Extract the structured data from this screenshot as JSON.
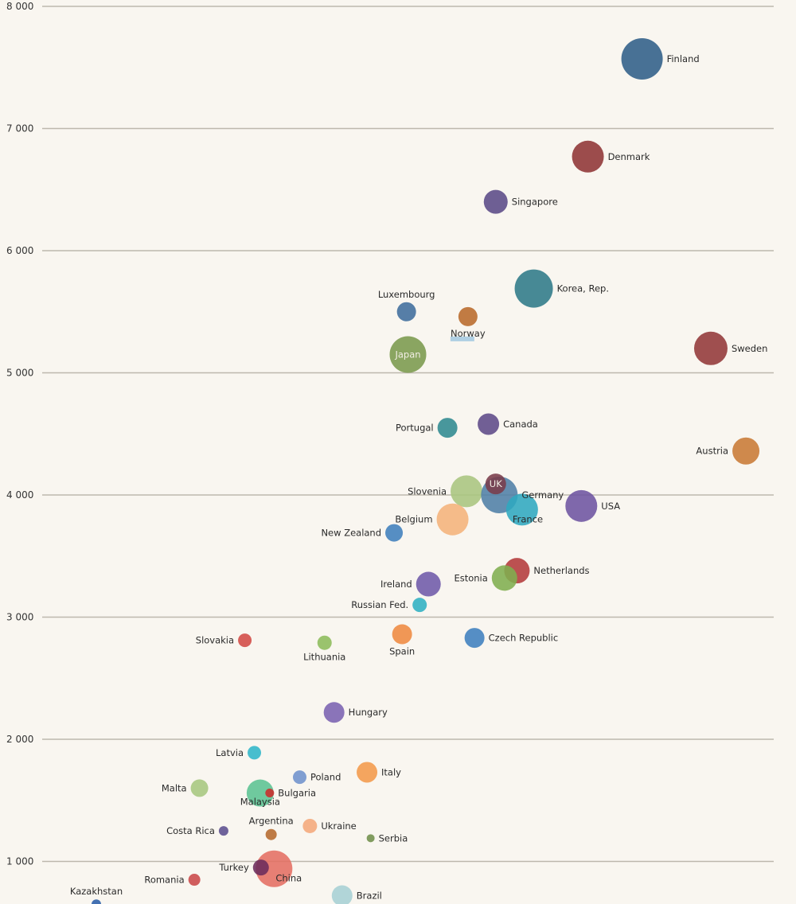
{
  "chart_data": {
    "type": "scatter",
    "subtype": "bubble",
    "title": "",
    "xlabel": "",
    "ylabel": "",
    "ylim": [
      600,
      8000
    ],
    "xlim": [
      0,
      100
    ],
    "grid": true,
    "y_ticks": [
      {
        "value": 8000,
        "label": "8 000"
      },
      {
        "value": 7000,
        "label": "7 000"
      },
      {
        "value": 6000,
        "label": "6 000"
      },
      {
        "value": 5000,
        "label": "5 000"
      },
      {
        "value": 4000,
        "label": "4 000"
      },
      {
        "value": 3000,
        "label": "3 000"
      },
      {
        "value": 2000,
        "label": "2 000"
      },
      {
        "value": 1000,
        "label": "1 000"
      }
    ],
    "points": [
      {
        "name": "Finland",
        "x": 82.0,
        "y": 7570,
        "size": 26,
        "color": "#2f5f87",
        "label_pos": "right"
      },
      {
        "name": "Denmark",
        "x": 74.6,
        "y": 6770,
        "size": 20,
        "color": "#8e3434",
        "label_pos": "right"
      },
      {
        "name": "Singapore",
        "x": 62.0,
        "y": 6400,
        "size": 15,
        "color": "#5a4a86",
        "label_pos": "right"
      },
      {
        "name": "Korea, Rep.",
        "x": 67.2,
        "y": 5690,
        "size": 24,
        "color": "#2d7a87",
        "label_pos": "right"
      },
      {
        "name": "Luxembourg",
        "x": 49.8,
        "y": 5500,
        "size": 12,
        "color": "#3f6d9c",
        "label_pos": "top"
      },
      {
        "name": "Norway",
        "x": 58.2,
        "y": 5460,
        "size": 12,
        "color": "#b86a2a",
        "label_pos": "bottom"
      },
      {
        "name": "Japan",
        "x": 50.0,
        "y": 5150,
        "size": 23,
        "color": "#7a9a4c",
        "label_pos": "inside"
      },
      {
        "name": "Sweden",
        "x": 91.4,
        "y": 5200,
        "size": 21,
        "color": "#923838",
        "label_pos": "right"
      },
      {
        "name": "Portugal",
        "x": 55.4,
        "y": 4550,
        "size": 12.5,
        "color": "#2f8a90",
        "label_pos": "left"
      },
      {
        "name": "Canada",
        "x": 61.0,
        "y": 4580,
        "size": 13.5,
        "color": "#5d4a88",
        "label_pos": "right"
      },
      {
        "name": "Austria",
        "x": 96.2,
        "y": 4360,
        "size": 17,
        "color": "#c87a34",
        "label_pos": "left"
      },
      {
        "name": "Slovenia",
        "x": 58.0,
        "y": 4030,
        "size": 20,
        "color": "#a9c57e",
        "label_pos": "left"
      },
      {
        "name": "Germany",
        "x": 62.5,
        "y": 4000,
        "size": 23,
        "color": "#4e7fa6",
        "label_pos": "right"
      },
      {
        "name": "UK",
        "x": 62.0,
        "y": 4090,
        "size": 13,
        "color": "#7a3c4a",
        "label_pos": "inside"
      },
      {
        "name": "France",
        "x": 65.6,
        "y": 3880,
        "size": 20,
        "color": "#2fa8bf",
        "label_pos": "bottom-right"
      },
      {
        "name": "USA",
        "x": 73.7,
        "y": 3910,
        "size": 20,
        "color": "#6d54a0",
        "label_pos": "right"
      },
      {
        "name": "Belgium",
        "x": 56.1,
        "y": 3800,
        "size": 20,
        "color": "#f4b37a",
        "label_pos": "left"
      },
      {
        "name": "New Zealand",
        "x": 48.1,
        "y": 3690,
        "size": 11,
        "color": "#3f7fbc",
        "label_pos": "left"
      },
      {
        "name": "Netherlands",
        "x": 64.9,
        "y": 3380,
        "size": 16,
        "color": "#b33a3a",
        "label_pos": "right"
      },
      {
        "name": "Estonia",
        "x": 63.2,
        "y": 3320,
        "size": 16,
        "color": "#7fae4e",
        "label_pos": "left"
      },
      {
        "name": "Ireland",
        "x": 52.8,
        "y": 3270,
        "size": 15.5,
        "color": "#6e5aa8",
        "label_pos": "left"
      },
      {
        "name": "Russian Fed.",
        "x": 51.6,
        "y": 3100,
        "size": 9,
        "color": "#2fb0c2",
        "label_pos": "left"
      },
      {
        "name": "Spain",
        "x": 49.2,
        "y": 2860,
        "size": 12.5,
        "color": "#ee8a40",
        "label_pos": "bottom"
      },
      {
        "name": "Czech Republic",
        "x": 59.1,
        "y": 2830,
        "size": 12.5,
        "color": "#3d7fbe",
        "label_pos": "right"
      },
      {
        "name": "Slovakia",
        "x": 27.7,
        "y": 2810,
        "size": 8.5,
        "color": "#d24a44",
        "label_pos": "left"
      },
      {
        "name": "Lithuania",
        "x": 38.6,
        "y": 2790,
        "size": 9,
        "color": "#8cbc5a",
        "label_pos": "bottom"
      },
      {
        "name": "Hungary",
        "x": 39.9,
        "y": 2220,
        "size": 13,
        "color": "#7a62b0",
        "label_pos": "right"
      },
      {
        "name": "Latvia",
        "x": 29.0,
        "y": 1890,
        "size": 8.5,
        "color": "#2fb6c8",
        "label_pos": "left"
      },
      {
        "name": "Italy",
        "x": 44.4,
        "y": 1730,
        "size": 13,
        "color": "#f39a4a",
        "label_pos": "right"
      },
      {
        "name": "Poland",
        "x": 35.2,
        "y": 1690,
        "size": 8.5,
        "color": "#6e92cc",
        "label_pos": "right"
      },
      {
        "name": "Malta",
        "x": 21.5,
        "y": 1600,
        "size": 11,
        "color": "#a6c77e",
        "label_pos": "left"
      },
      {
        "name": "Malaysia",
        "x": 29.8,
        "y": 1560,
        "size": 17,
        "color": "#5bc392",
        "label_pos": "bottom-left"
      },
      {
        "name": "Bulgaria",
        "x": 31.1,
        "y": 1560,
        "size": 5.5,
        "color": "#cc2b2b",
        "label_pos": "right"
      },
      {
        "name": "Ukraine",
        "x": 36.6,
        "y": 1290,
        "size": 9,
        "color": "#f4a87a",
        "label_pos": "right"
      },
      {
        "name": "Costa Rica",
        "x": 24.8,
        "y": 1250,
        "size": 6,
        "color": "#5b4f8e",
        "label_pos": "left"
      },
      {
        "name": "Argentina",
        "x": 31.3,
        "y": 1220,
        "size": 7,
        "color": "#b56a2e",
        "label_pos": "top"
      },
      {
        "name": "Serbia",
        "x": 44.9,
        "y": 1190,
        "size": 5,
        "color": "#6f8f4a",
        "label_pos": "right"
      },
      {
        "name": "China",
        "x": 31.7,
        "y": 940,
        "size": 23,
        "color": "#e46e62",
        "label_pos": "inside-bottom-right"
      },
      {
        "name": "Turkey",
        "x": 29.9,
        "y": 950,
        "size": 10,
        "color": "#6b2c5c",
        "label_pos": "left"
      },
      {
        "name": "Romania",
        "x": 20.8,
        "y": 850,
        "size": 7.5,
        "color": "#c94848",
        "label_pos": "left"
      },
      {
        "name": "Brazil",
        "x": 41.0,
        "y": 720,
        "size": 13,
        "color": "#a6d0d4",
        "label_pos": "right"
      },
      {
        "name": "Kazakhstan",
        "x": 7.4,
        "y": 650,
        "size": 6,
        "color": "#2a5ea8",
        "label_pos": "top"
      }
    ]
  }
}
